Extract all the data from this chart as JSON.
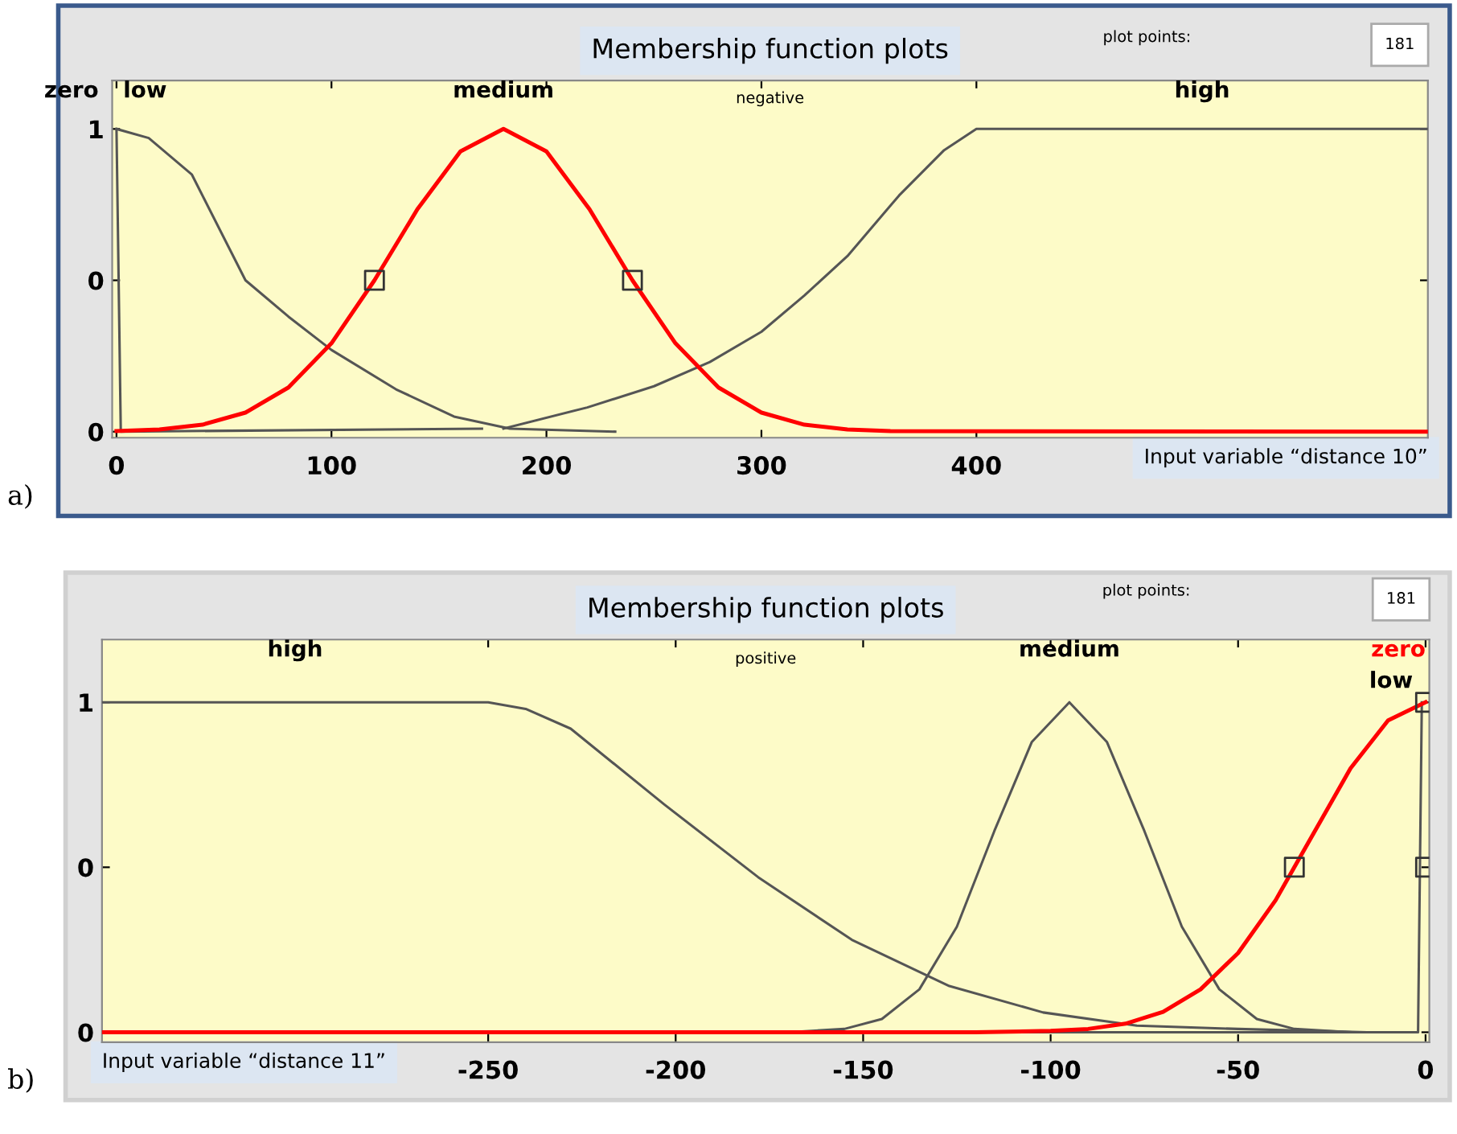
{
  "chart_data": [
    {
      "type": "line",
      "title": "Membership function plots",
      "xlabel": "Input variable “distance 10”",
      "xlim": [
        -2,
        610
      ],
      "xticks": [
        0,
        100,
        200,
        300,
        400
      ],
      "ylim": [
        -0.02,
        1.16
      ],
      "yticks": [
        {
          "value": 0,
          "label": "0"
        },
        {
          "value": 0.5,
          "label": "0"
        },
        {
          "value": 1,
          "label": "1"
        }
      ],
      "series": [
        {
          "name": "zero",
          "color": "#555555",
          "x": [
            0,
            2,
            170
          ],
          "values": [
            1,
            0,
            0.01
          ]
        },
        {
          "name": "low",
          "color": "#555555",
          "x": [
            0,
            15,
            35,
            60,
            80,
            100,
            130,
            157,
            183,
            232
          ],
          "values": [
            1,
            0.97,
            0.85,
            0.5,
            0.38,
            0.27,
            0.14,
            0.05,
            0.01,
            0
          ]
        },
        {
          "name": "high",
          "color": "#555555",
          "x": [
            180,
            219,
            250,
            276,
            300,
            320,
            340,
            364,
            385,
            400,
            610
          ],
          "values": [
            0.01,
            0.08,
            0.15,
            0.23,
            0.33,
            0.45,
            0.58,
            0.78,
            0.93,
            1,
            1
          ]
        },
        {
          "name": "medium",
          "color": "#ff0000",
          "x": [
            0,
            20,
            40,
            60,
            80,
            100,
            120,
            140,
            160,
            180,
            200,
            220,
            240,
            260,
            280,
            300,
            320,
            340,
            360,
            610
          ],
          "values": [
            0.002,
            0.007,
            0.023,
            0.063,
            0.146,
            0.292,
            0.5,
            0.735,
            0.926,
            1,
            0.926,
            0.735,
            0.5,
            0.292,
            0.146,
            0.063,
            0.023,
            0.007,
            0.002,
            0
          ]
        },
        {
          "type": "scatter",
          "marker": "square",
          "color": "#333333",
          "x": [
            120,
            240
          ],
          "values": [
            0.5,
            0.5
          ]
        }
      ],
      "annotations": [
        "negative",
        "plot points:",
        "181",
        "a)"
      ]
    },
    {
      "type": "line",
      "title": "Membership function plots",
      "xlabel": "Input variable “distance 11”",
      "xlim": [
        -353,
        1
      ],
      "xticks": [
        -250,
        -200,
        -150,
        -100,
        -50,
        0
      ],
      "ylim": [
        -0.03,
        1.19
      ],
      "yticks": [
        {
          "value": 0,
          "label": "0"
        },
        {
          "value": 0.5,
          "label": "0"
        },
        {
          "value": 1,
          "label": "1"
        }
      ],
      "series": [
        {
          "name": "high",
          "color": "#555555",
          "x": [
            -353,
            -250,
            -240,
            -228,
            -203,
            -178,
            -153,
            -127,
            -102,
            -77,
            -50,
            -16
          ],
          "values": [
            1,
            1,
            0.98,
            0.92,
            0.69,
            0.47,
            0.28,
            0.14,
            0.06,
            0.02,
            0.01,
            0
          ]
        },
        {
          "name": "medium",
          "color": "#555555",
          "x": [
            -170,
            -155,
            -145,
            -135,
            -125,
            -115,
            -105,
            -95,
            -85,
            -75,
            -65,
            -55,
            -45,
            -35,
            -20
          ],
          "values": [
            0,
            0.01,
            0.04,
            0.13,
            0.32,
            0.61,
            0.88,
            1,
            0.88,
            0.61,
            0.32,
            0.13,
            0.04,
            0.01,
            0
          ]
        },
        {
          "name": "low",
          "color": "#555555",
          "x": [
            -150,
            -2,
            -1
          ],
          "values": [
            0,
            0,
            1
          ]
        },
        {
          "name": "zero",
          "color": "#ff0000",
          "x": [
            -353,
            -120,
            -100,
            -90,
            -80,
            -70,
            -60,
            -50,
            -40,
            -35,
            -30,
            -20,
            -10,
            0
          ],
          "values": [
            0,
            0,
            0.004,
            0.01,
            0.026,
            0.062,
            0.13,
            0.24,
            0.4,
            0.5,
            0.6,
            0.8,
            0.945,
            1
          ]
        },
        {
          "type": "scatter",
          "marker": "square",
          "color": "#333333",
          "x": [
            -35,
            0,
            0
          ],
          "values": [
            0.5,
            1,
            0.5
          ]
        }
      ],
      "annotations": [
        "positive",
        "plot points:",
        "181",
        "b)"
      ]
    }
  ]
}
